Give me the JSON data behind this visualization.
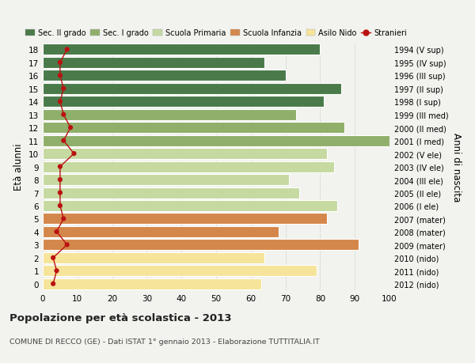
{
  "ages": [
    0,
    1,
    2,
    3,
    4,
    5,
    6,
    7,
    8,
    9,
    10,
    11,
    12,
    13,
    14,
    15,
    16,
    17,
    18
  ],
  "bar_values": [
    63,
    79,
    64,
    91,
    68,
    82,
    85,
    74,
    71,
    84,
    82,
    100,
    87,
    73,
    81,
    86,
    70,
    64,
    80
  ],
  "bar_colors": [
    "#F5E49A",
    "#F5E49A",
    "#F5E49A",
    "#D4874A",
    "#D4874A",
    "#D4874A",
    "#C5D9A0",
    "#C5D9A0",
    "#C5D9A0",
    "#C5D9A0",
    "#C5D9A0",
    "#8FAF6A",
    "#8FAF6A",
    "#8FAF6A",
    "#4A7A4A",
    "#4A7A4A",
    "#4A7A4A",
    "#4A7A4A",
    "#4A7A4A"
  ],
  "stranieri_values": [
    3,
    4,
    3,
    7,
    4,
    6,
    5,
    5,
    5,
    5,
    9,
    6,
    8,
    6,
    5,
    6,
    5,
    5,
    7
  ],
  "right_labels": [
    "2012 (nido)",
    "2011 (nido)",
    "2010 (nido)",
    "2009 (mater)",
    "2008 (mater)",
    "2007 (mater)",
    "2006 (I ele)",
    "2005 (II ele)",
    "2004 (III ele)",
    "2003 (IV ele)",
    "2002 (V ele)",
    "2001 (I med)",
    "2000 (II med)",
    "1999 (III med)",
    "1998 (I sup)",
    "1997 (II sup)",
    "1996 (III sup)",
    "1995 (IV sup)",
    "1994 (V sup)"
  ],
  "legend_labels": [
    "Sec. II grado",
    "Sec. I grado",
    "Scuola Primaria",
    "Scuola Infanzia",
    "Asilo Nido",
    "Stranieri"
  ],
  "legend_colors": [
    "#4A7A4A",
    "#8FAF6A",
    "#C5D9A0",
    "#D4874A",
    "#F5E49A",
    "#BB1111"
  ],
  "ylabel_left": "Età alunni",
  "ylabel_right": "Anni di nascita",
  "title": "Popolazione per età scolastica - 2013",
  "subtitle": "COMUNE DI RECCO (GE) - Dati ISTAT 1° gennaio 2013 - Elaborazione TUTTITALIA.IT",
  "xlim": [
    0,
    100
  ],
  "background_color": "#F2F2EE",
  "bar_edge_color": "#FFFFFF",
  "grid_color": "#CCCCCC"
}
